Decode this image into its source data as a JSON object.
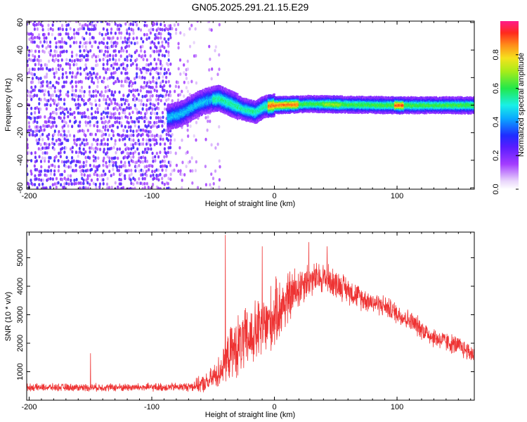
{
  "title": "GN05.2025.291.21.15.E29",
  "chart_data": [
    {
      "type": "heatmap",
      "xlabel": "Height of straight line (km)",
      "ylabel": "Frequency (Hz)",
      "xlim": [
        -202,
        163
      ],
      "ylim": [
        -61,
        61
      ],
      "xticks": [
        -200,
        -100,
        0,
        100
      ],
      "xtick_labels": [
        "-200",
        "-100",
        "0",
        "100"
      ],
      "yticks": [
        60,
        40,
        20,
        0,
        -20,
        -40,
        -60
      ],
      "ytick_labels": [
        "60",
        "40",
        "20",
        "0",
        "-20",
        "-40",
        "-60"
      ],
      "colorbar": {
        "label": "Normalized spectral amplitude",
        "range": [
          0,
          1
        ],
        "ticks": [
          0.0,
          0.2,
          0.4,
          0.6,
          0.8
        ],
        "tick_labels": [
          "0.0",
          "0.2",
          "0.4",
          "0.6",
          "0.8"
        ],
        "colormap": "rainbow-purple-to-red"
      },
      "noise_region_km": [
        -202,
        -45
      ],
      "signal_track": [
        {
          "x": -87,
          "f": -9
        },
        {
          "x": -75,
          "f": -6
        },
        {
          "x": -62,
          "f": 1
        },
        {
          "x": -52,
          "f": 4
        },
        {
          "x": -45,
          "f": 5
        },
        {
          "x": -35,
          "f": 1
        },
        {
          "x": -25,
          "f": -3
        },
        {
          "x": -15,
          "f": -5
        },
        {
          "x": -8,
          "f": -1
        },
        {
          "x": 0,
          "f": 0
        },
        {
          "x": 30,
          "f": 1
        },
        {
          "x": 60,
          "f": 0.5
        },
        {
          "x": 100,
          "f": 0
        },
        {
          "x": 163,
          "f": 0
        }
      ]
    },
    {
      "type": "line",
      "xlabel": "Height of straight line (km)",
      "ylabel": "SNR (10 * v/v)",
      "xlim": [
        -202,
        163
      ],
      "ylim": [
        0,
        5900
      ],
      "xticks": [
        -200,
        -100,
        0,
        100
      ],
      "xtick_labels": [
        "-200",
        "-100",
        "0",
        "100"
      ],
      "yticks": [
        1000,
        2000,
        3000,
        4000,
        5000
      ],
      "ytick_labels": [
        "1000",
        "2000",
        "3000",
        "4000",
        "5000"
      ],
      "color": "#ee3333",
      "envelope": [
        {
          "x": -202,
          "y": 450
        },
        {
          "x": -150,
          "y": 450
        },
        {
          "x": -100,
          "y": 450
        },
        {
          "x": -70,
          "y": 470
        },
        {
          "x": -55,
          "y": 600
        },
        {
          "x": -45,
          "y": 1000
        },
        {
          "x": -35,
          "y": 1700
        },
        {
          "x": -20,
          "y": 2200
        },
        {
          "x": -5,
          "y": 2700
        },
        {
          "x": 10,
          "y": 3500
        },
        {
          "x": 25,
          "y": 4200
        },
        {
          "x": 40,
          "y": 4300
        },
        {
          "x": 55,
          "y": 4000
        },
        {
          "x": 70,
          "y": 3600
        },
        {
          "x": 90,
          "y": 3300
        },
        {
          "x": 110,
          "y": 2800
        },
        {
          "x": 130,
          "y": 2200
        },
        {
          "x": 150,
          "y": 1900
        },
        {
          "x": 163,
          "y": 1600
        }
      ],
      "noise_amplitude": [
        {
          "x": -202,
          "a": 150
        },
        {
          "x": -70,
          "a": 180
        },
        {
          "x": -50,
          "a": 500
        },
        {
          "x": -30,
          "a": 1300
        },
        {
          "x": 0,
          "a": 1400
        },
        {
          "x": 30,
          "a": 700
        },
        {
          "x": 80,
          "a": 450
        },
        {
          "x": 163,
          "a": 400
        }
      ],
      "spikes": [
        {
          "x": -150,
          "y": 1650
        },
        {
          "x": -40,
          "y": 5800
        },
        {
          "x": -10,
          "y": 5400
        },
        {
          "x": 28,
          "y": 5550
        },
        {
          "x": 43,
          "y": 5400
        }
      ]
    }
  ]
}
